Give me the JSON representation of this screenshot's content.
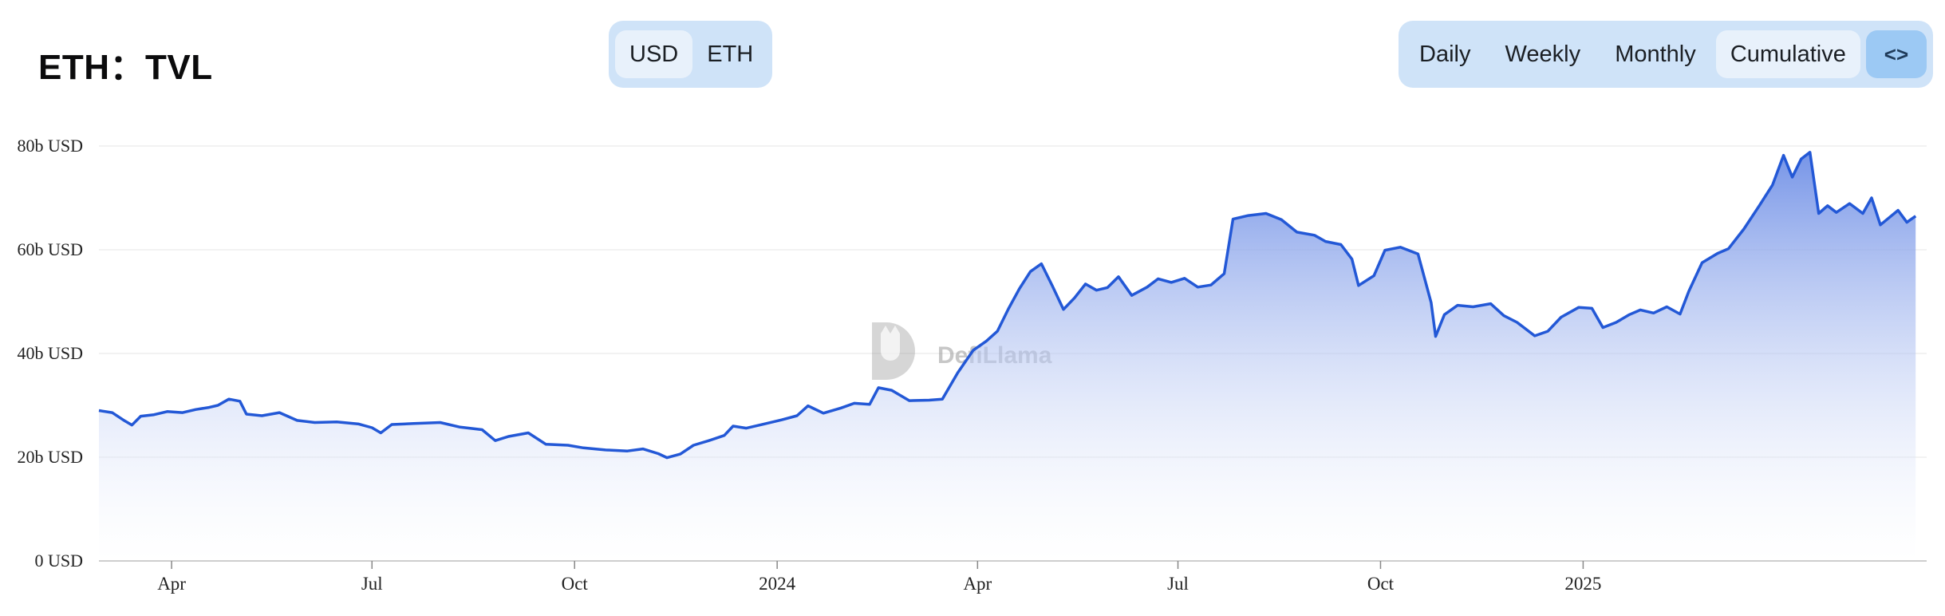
{
  "header": {
    "title": "ETH：TVL"
  },
  "unit_toggle": {
    "options": [
      "USD",
      "ETH"
    ],
    "selected": "USD"
  },
  "period_toggle": {
    "options": [
      "Daily",
      "Weekly",
      "Monthly",
      "Cumulative"
    ],
    "selected": "Cumulative",
    "embed_label": "<>"
  },
  "watermark": "DefiLlama",
  "colors": {
    "line": "#2358d6",
    "fill_top": "#6f8fe6",
    "fill_bottom": "#ffffff",
    "toggle_bg": "#cfe3f8",
    "toggle_active": "#e8f1fb",
    "embed_bg": "#9cc9f4"
  },
  "chart_data": {
    "type": "area",
    "series": [
      {
        "name": "",
        "points": [
          [
            "2023-02-27",
            29
          ],
          [
            "2023-03-05",
            28.6
          ],
          [
            "2023-03-10",
            27.2
          ],
          [
            "2023-03-14",
            26.2
          ],
          [
            "2023-03-18",
            27.9
          ],
          [
            "2023-03-24",
            28.2
          ],
          [
            "2023-03-30",
            28.8
          ],
          [
            "2023-04-06",
            28.6
          ],
          [
            "2023-04-12",
            29.2
          ],
          [
            "2023-04-18",
            29.6
          ],
          [
            "2023-04-22",
            30.0
          ],
          [
            "2023-04-27",
            31.2
          ],
          [
            "2023-05-02",
            30.8
          ],
          [
            "2023-05-05",
            28.3
          ],
          [
            "2023-05-12",
            28.0
          ],
          [
            "2023-05-20",
            28.6
          ],
          [
            "2023-05-28",
            27.1
          ],
          [
            "2023-06-05",
            26.7
          ],
          [
            "2023-06-15",
            26.8
          ],
          [
            "2023-06-25",
            26.4
          ],
          [
            "2023-07-01",
            25.7
          ],
          [
            "2023-07-05",
            24.7
          ],
          [
            "2023-07-10",
            26.3
          ],
          [
            "2023-07-20",
            26.5
          ],
          [
            "2023-08-01",
            26.7
          ],
          [
            "2023-08-10",
            25.8
          ],
          [
            "2023-08-20",
            25.3
          ],
          [
            "2023-08-26",
            23.2
          ],
          [
            "2023-09-01",
            24.0
          ],
          [
            "2023-09-10",
            24.7
          ],
          [
            "2023-09-18",
            22.5
          ],
          [
            "2023-09-28",
            22.3
          ],
          [
            "2023-10-05",
            21.8
          ],
          [
            "2023-10-15",
            21.4
          ],
          [
            "2023-10-25",
            21.2
          ],
          [
            "2023-11-01",
            21.6
          ],
          [
            "2023-11-08",
            20.7
          ],
          [
            "2023-11-12",
            19.9
          ],
          [
            "2023-11-18",
            20.6
          ],
          [
            "2023-11-24",
            22.3
          ],
          [
            "2023-12-01",
            23.2
          ],
          [
            "2023-12-08",
            24.2
          ],
          [
            "2023-12-12",
            26.0
          ],
          [
            "2023-12-18",
            25.6
          ],
          [
            "2023-12-26",
            26.4
          ],
          [
            "2024-01-03",
            27.2
          ],
          [
            "2024-01-10",
            28.0
          ],
          [
            "2024-01-15",
            29.9
          ],
          [
            "2024-01-22",
            28.5
          ],
          [
            "2024-01-30",
            29.5
          ],
          [
            "2024-02-05",
            30.4
          ],
          [
            "2024-02-12",
            30.2
          ],
          [
            "2024-02-16",
            33.4
          ],
          [
            "2024-02-22",
            32.9
          ],
          [
            "2024-03-01",
            30.9
          ],
          [
            "2024-03-10",
            31.0
          ],
          [
            "2024-03-16",
            31.2
          ],
          [
            "2024-03-23",
            36.3
          ],
          [
            "2024-03-30",
            40.6
          ],
          [
            "2024-04-05",
            42.4
          ],
          [
            "2024-04-10",
            44.3
          ],
          [
            "2024-04-15",
            48.6
          ],
          [
            "2024-04-20",
            52.5
          ],
          [
            "2024-04-25",
            55.8
          ],
          [
            "2024-04-30",
            57.3
          ],
          [
            "2024-05-05",
            53.0
          ],
          [
            "2024-05-10",
            48.5
          ],
          [
            "2024-05-15",
            50.7
          ],
          [
            "2024-05-20",
            53.4
          ],
          [
            "2024-05-25",
            52.2
          ],
          [
            "2024-05-30",
            52.7
          ],
          [
            "2024-06-04",
            54.8
          ],
          [
            "2024-06-10",
            51.2
          ],
          [
            "2024-06-17",
            52.8
          ],
          [
            "2024-06-22",
            54.4
          ],
          [
            "2024-06-28",
            53.7
          ],
          [
            "2024-07-04",
            54.5
          ],
          [
            "2024-07-10",
            52.8
          ],
          [
            "2024-07-16",
            53.2
          ],
          [
            "2024-07-22",
            55.4
          ],
          [
            "2024-07-26",
            65.9
          ],
          [
            "2024-08-02",
            66.6
          ],
          [
            "2024-08-10",
            67.0
          ],
          [
            "2024-08-17",
            65.8
          ],
          [
            "2024-08-24",
            63.4
          ],
          [
            "2024-09-01",
            62.8
          ],
          [
            "2024-09-06",
            61.6
          ],
          [
            "2024-09-13",
            61.0
          ],
          [
            "2024-09-18",
            58.2
          ],
          [
            "2024-09-21",
            53.1
          ],
          [
            "2024-09-28",
            55.0
          ],
          [
            "2024-10-03",
            59.9
          ],
          [
            "2024-10-10",
            60.5
          ],
          [
            "2024-10-18",
            59.2
          ],
          [
            "2024-10-24",
            49.8
          ],
          [
            "2024-10-26",
            43.3
          ],
          [
            "2024-10-30",
            47.5
          ],
          [
            "2024-11-05",
            49.3
          ],
          [
            "2024-11-12",
            49.0
          ],
          [
            "2024-11-20",
            49.6
          ],
          [
            "2024-11-26",
            47.3
          ],
          [
            "2024-12-02",
            46.0
          ],
          [
            "2024-12-10",
            43.4
          ],
          [
            "2024-12-16",
            44.3
          ],
          [
            "2024-12-22",
            47.0
          ],
          [
            "2024-12-30",
            48.9
          ],
          [
            "2025-01-05",
            48.7
          ],
          [
            "2025-01-10",
            45.0
          ],
          [
            "2025-01-16",
            46.0
          ],
          [
            "2025-01-22",
            47.5
          ],
          [
            "2025-01-27",
            48.4
          ],
          [
            "2025-02-02",
            47.8
          ],
          [
            "2025-02-08",
            49.0
          ],
          [
            "2025-02-14",
            47.6
          ],
          [
            "2025-02-18",
            52.0
          ],
          [
            "2025-02-24",
            57.5
          ],
          [
            "2025-03-03",
            59.3
          ],
          [
            "2025-03-08",
            60.2
          ],
          [
            "2025-03-15",
            64.0
          ],
          [
            "2025-03-22",
            68.5
          ],
          [
            "2025-03-28",
            72.5
          ],
          [
            "2025-04-02",
            78.2
          ],
          [
            "2025-04-06",
            74.0
          ],
          [
            "2025-04-10",
            77.5
          ],
          [
            "2025-04-14",
            78.8
          ],
          [
            "2025-04-18",
            67.0
          ],
          [
            "2025-04-22",
            68.5
          ],
          [
            "2025-04-26",
            67.2
          ],
          [
            "2025-05-02",
            68.9
          ],
          [
            "2025-05-08",
            67.0
          ],
          [
            "2025-05-12",
            70.0
          ],
          [
            "2025-05-16",
            64.8
          ],
          [
            "2025-05-20",
            66.2
          ],
          [
            "2025-05-24",
            67.6
          ],
          [
            "2025-05-28",
            65.3
          ],
          [
            "2025-06-01",
            66.5
          ]
        ]
      }
    ],
    "x_ticks": [
      {
        "date": "2023-04-01",
        "label": "Apr"
      },
      {
        "date": "2023-07-01",
        "label": "Jul"
      },
      {
        "date": "2023-10-01",
        "label": "Oct"
      },
      {
        "date": "2024-01-01",
        "label": "2024"
      },
      {
        "date": "2024-04-01",
        "label": "Apr"
      },
      {
        "date": "2024-07-01",
        "label": "Jul"
      },
      {
        "date": "2024-10-01",
        "label": "Oct"
      },
      {
        "date": "2025-01-01",
        "label": "2025"
      }
    ],
    "y_ticks": [
      {
        "value": 0,
        "label": "0 USD"
      },
      {
        "value": 20,
        "label": "20b USD"
      },
      {
        "value": 40,
        "label": "40b USD"
      },
      {
        "value": 60,
        "label": "60b USD"
      },
      {
        "value": 80,
        "label": "80b USD"
      }
    ],
    "xlim": [
      "2023-02-27",
      "2025-06-06"
    ],
    "ylim": [
      0,
      80
    ],
    "y_unit": "billion USD",
    "grid": "horizontal"
  }
}
